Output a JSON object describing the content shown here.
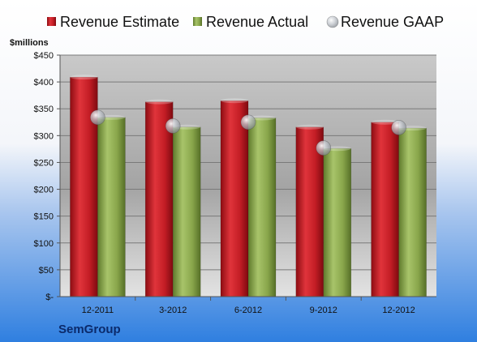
{
  "chart_data": {
    "type": "bar",
    "ylabel": "$millions",
    "ylim": [
      0,
      450
    ],
    "y_ticks": [
      0,
      50,
      100,
      150,
      200,
      250,
      300,
      350,
      400,
      450
    ],
    "y_tick_labels": [
      "$-",
      "$50",
      "$100",
      "$150",
      "$200",
      "$250",
      "$300",
      "$350",
      "$400",
      "$450"
    ],
    "categories": [
      "12-2011",
      "3-2012",
      "6-2012",
      "9-2012",
      "12-2012"
    ],
    "series": [
      {
        "name": "Revenue Estimate",
        "kind": "bar",
        "color": "#c8202a",
        "values": [
          409,
          363,
          365,
          316,
          325
        ]
      },
      {
        "name": "Revenue Actual",
        "kind": "bar",
        "color": "#8eaa4f",
        "values": [
          334,
          316,
          333,
          276,
          314
        ]
      },
      {
        "name": "Revenue GAAP",
        "kind": "marker",
        "color": "#b9bec6",
        "values": [
          334,
          318,
          325,
          277,
          315
        ]
      }
    ],
    "grid": true,
    "legend_position": "top",
    "company": "SemGroup"
  }
}
